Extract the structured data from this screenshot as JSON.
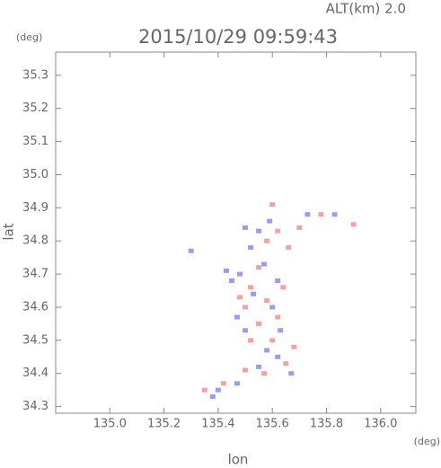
{
  "chart_data": {
    "type": "scatter",
    "title": "2015/10/29 09:59:43",
    "subtitle": "ALT(km) 2.0",
    "y_unit": "(deg)",
    "x_unit": "(deg)",
    "xlabel": "lon",
    "ylabel": "lat",
    "xlim": [
      134.8,
      136.13
    ],
    "ylim": [
      34.28,
      35.37
    ],
    "xticks": [
      {
        "value": 135.0,
        "label": "135.0"
      },
      135.2,
      135.4,
      135.6,
      135.8,
      {
        "value": 136.0,
        "label": "136.0"
      }
    ],
    "yticks": [
      34.3,
      34.4,
      34.5,
      34.6,
      34.7,
      34.8,
      34.9,
      {
        "value": 35.0,
        "label": "35.0"
      },
      35.1,
      35.2,
      35.3
    ],
    "series": [
      {
        "color": "#f49090",
        "x": [
          135.6,
          135.62,
          135.7,
          135.78,
          135.9,
          135.55,
          135.52,
          135.58,
          135.5,
          135.62,
          135.55,
          135.52,
          135.6,
          135.68,
          135.65,
          135.57,
          135.5,
          135.42,
          135.35,
          135.64,
          135.48,
          135.58,
          135.66
        ],
        "y": [
          34.91,
          34.83,
          34.84,
          34.88,
          34.85,
          34.72,
          34.66,
          34.62,
          34.6,
          34.57,
          34.55,
          34.5,
          34.5,
          34.48,
          34.43,
          34.4,
          34.41,
          34.37,
          34.35,
          34.66,
          34.63,
          34.8,
          34.78
        ]
      },
      {
        "color": "#8a8af0",
        "x": [
          135.5,
          135.55,
          135.59,
          135.73,
          135.83,
          135.3,
          135.48,
          135.57,
          135.45,
          135.62,
          135.53,
          135.6,
          135.47,
          135.63,
          135.5,
          135.58,
          135.62,
          135.55,
          135.47,
          135.4,
          135.38,
          135.67,
          135.52,
          135.43
        ],
        "y": [
          34.84,
          34.83,
          34.86,
          34.88,
          34.88,
          34.77,
          34.7,
          34.73,
          34.68,
          34.68,
          34.64,
          34.6,
          34.57,
          34.53,
          34.53,
          34.47,
          34.45,
          34.42,
          34.37,
          34.35,
          34.33,
          34.4,
          34.78,
          34.71
        ]
      }
    ]
  }
}
